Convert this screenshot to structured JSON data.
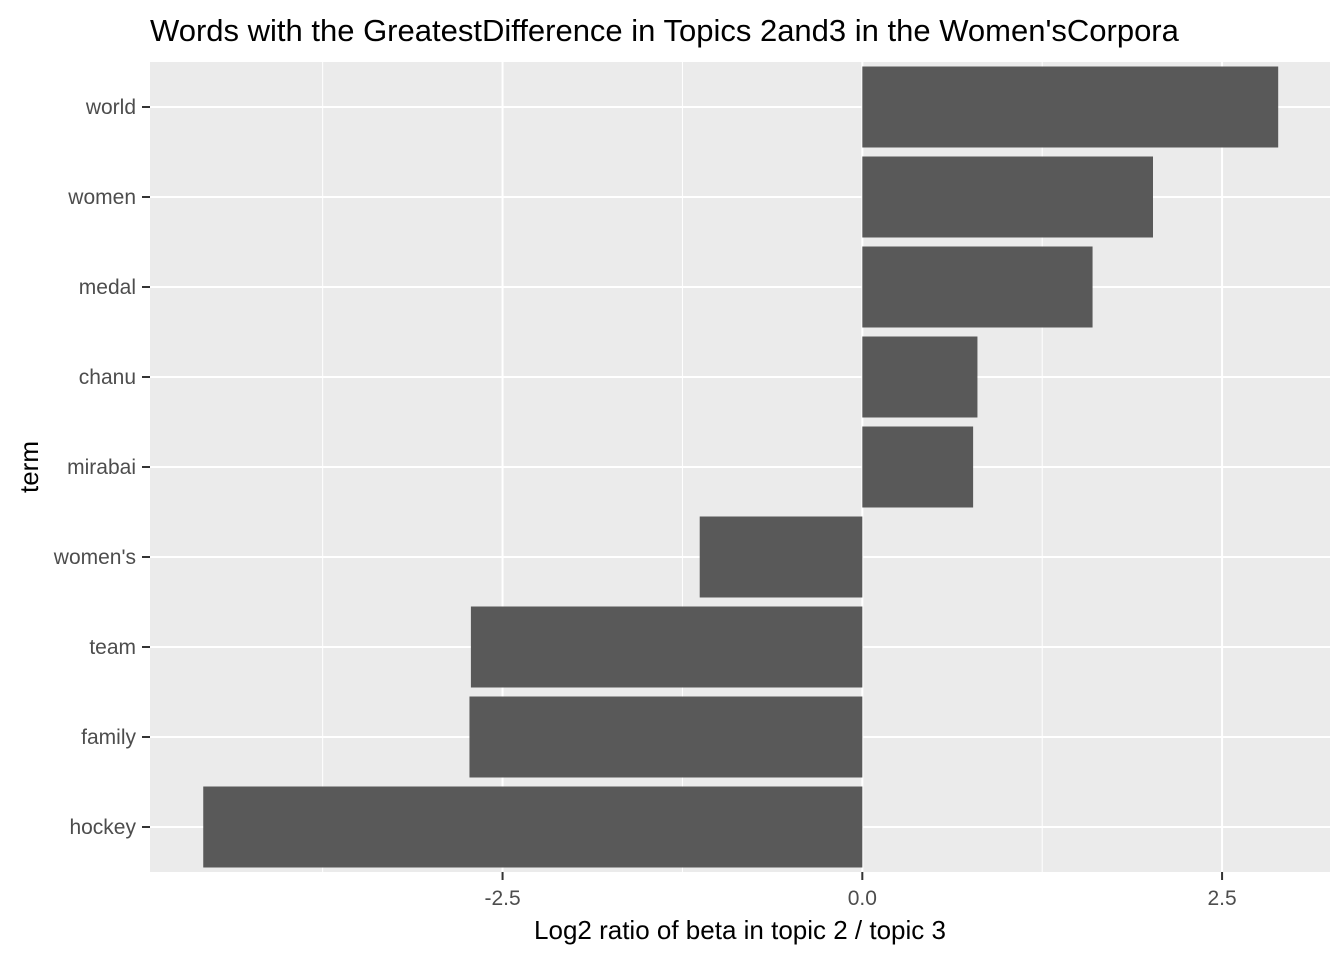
{
  "chart_data": {
    "type": "bar",
    "orientation": "horizontal",
    "title": "Words with the GreatestDifference in Topics 2and3 in the Women'sCorpora",
    "xlabel": "Log2 ratio of beta in topic 2 / topic 3",
    "ylabel": "term",
    "categories": [
      "world",
      "women",
      "medal",
      "chanu",
      "mirabai",
      "women's",
      "team",
      "family",
      "hockey"
    ],
    "values": [
      2.89,
      2.02,
      1.6,
      0.8,
      0.77,
      -1.13,
      -2.72,
      -2.73,
      -4.58
    ],
    "xlim": [
      -4.95,
      3.25
    ],
    "xticks": [
      -2.5,
      0,
      2.5
    ],
    "xtick_labels": [
      "-2.5",
      "0.0",
      "2.5"
    ],
    "grid": true,
    "legend": "none",
    "colors": {
      "bar": "#595959",
      "panel": "#ebebeb",
      "grid": "#ffffff",
      "axis_text": "#4d4d4d",
      "tick": "#333333"
    }
  }
}
